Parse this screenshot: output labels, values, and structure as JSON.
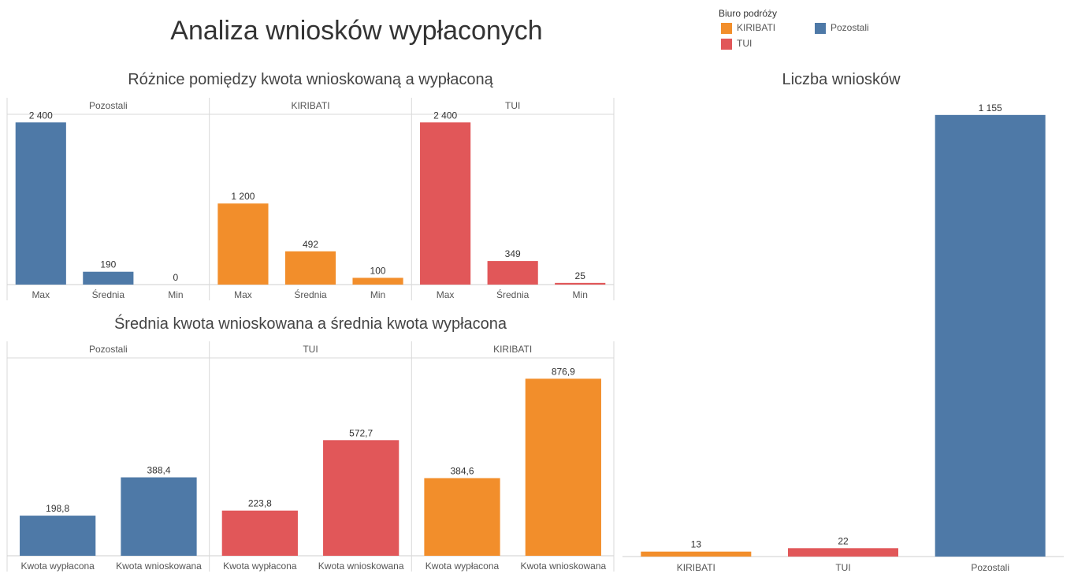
{
  "page": {
    "title": "Analiza wniosków wypłaconych"
  },
  "legend": {
    "title": "Biuro podróży",
    "items": [
      {
        "label": "KIRIBATI",
        "color": "#f28e2b"
      },
      {
        "label": "TUI",
        "color": "#e15759"
      },
      {
        "label": "Pozostali",
        "color": "#4e79a7"
      }
    ]
  },
  "chart_data": [
    {
      "type": "bar",
      "title": "Różnice pomiędzy kwota wnioskowaną a wypłaconą",
      "categories": [
        "Max",
        "Średnia",
        "Min"
      ],
      "ylim": [
        0,
        2520
      ],
      "grid": false,
      "panels": [
        {
          "name": "Pozostali",
          "color": "#4e79a7",
          "values": [
            2400,
            190,
            0
          ],
          "labels": [
            "2 400",
            "190",
            "0"
          ]
        },
        {
          "name": "KIRIBATI",
          "color": "#f28e2b",
          "values": [
            1200,
            492,
            100
          ],
          "labels": [
            "1 200",
            "492",
            "100"
          ]
        },
        {
          "name": "TUI",
          "color": "#e15759",
          "values": [
            2400,
            349,
            25
          ],
          "labels": [
            "2 400",
            "349",
            "25"
          ]
        }
      ]
    },
    {
      "type": "bar",
      "title": "Średnia kwota wnioskowana a średnia kwota wypłacona",
      "categories": [
        "Kwota wypłacona",
        "Kwota wnioskowana"
      ],
      "ylim": [
        0,
        980
      ],
      "grid": false,
      "panels": [
        {
          "name": "Pozostali",
          "color": "#4e79a7",
          "values": [
            198.8,
            388.4
          ],
          "labels": [
            "198,8",
            "388,4"
          ]
        },
        {
          "name": "TUI",
          "color": "#e15759",
          "values": [
            223.8,
            572.7
          ],
          "labels": [
            "223,8",
            "572,7"
          ]
        },
        {
          "name": "KIRIBATI",
          "color": "#f28e2b",
          "values": [
            384.6,
            876.9
          ],
          "labels": [
            "384,6",
            "876,9"
          ]
        }
      ]
    },
    {
      "type": "bar",
      "title": "Liczba wniosków",
      "categories": [
        "KIRIBATI",
        "TUI",
        "Pozostali"
      ],
      "colors": [
        "#f28e2b",
        "#e15759",
        "#4e79a7"
      ],
      "values": [
        13,
        22,
        1155
      ],
      "labels": [
        "13",
        "22",
        "1 155"
      ],
      "ylim": [
        0,
        1200
      ],
      "grid": false
    }
  ]
}
